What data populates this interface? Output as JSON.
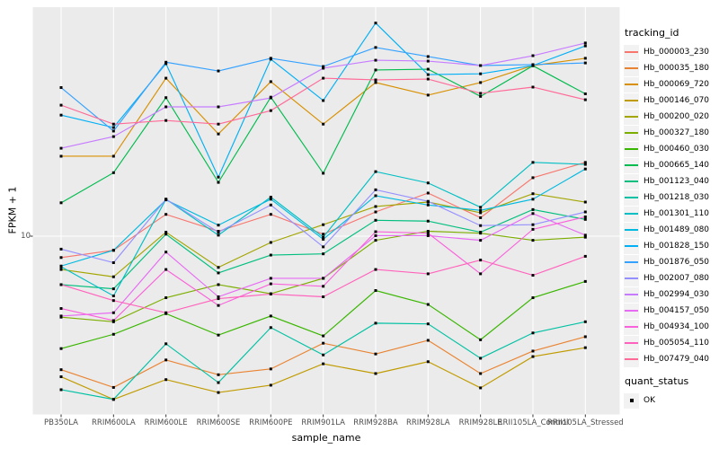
{
  "figure": {
    "panel_bg": "#EBEBEB",
    "grid_color": "#FFFFFF",
    "tick_color": "#333333",
    "axis_text_color": "#4D4D4D",
    "point_color": "#000000",
    "legend_key_bg": "#F2F2F2"
  },
  "axes": {
    "x_title": "sample_name",
    "y_title": "FPKM + 1",
    "y_tick_label": "10"
  },
  "legend": {
    "color_title": "tracking_id",
    "shape_title": "quant_status",
    "shape_item_label": "OK"
  },
  "chart_data": {
    "type": "line",
    "title": "",
    "xlabel": "sample_name",
    "ylabel": "FPKM + 1",
    "y_scale": "log10",
    "y_ticks": [
      10
    ],
    "ylim_approx": [
      1.8,
      90
    ],
    "grid": "major",
    "legend_position": "right",
    "point_marker": "black square (quant_status OK)",
    "categories": [
      "PB350LA",
      "RRIM600LA",
      "RRIM600LE",
      "RRIM600SE",
      "RRIM600PE",
      "RRIM901LA",
      "RRIM928BA",
      "RRIM928LA",
      "RRIM928LE",
      "RRII105LA_Control",
      "RRII105LA_Stressed"
    ],
    "series": [
      {
        "name": "Hb_000003_230",
        "color": "#F8766D",
        "values": [
          8.1,
          8.7,
          12.4,
          10.5,
          12.4,
          10.2,
          12.7,
          15.3,
          12.0,
          17.8,
          20.7
        ]
      },
      {
        "name": "Hb_000035_180",
        "color": "#EA8331",
        "values": [
          2.68,
          2.25,
          2.95,
          2.55,
          2.7,
          3.48,
          3.13,
          3.58,
          2.58,
          3.22,
          3.71
        ]
      },
      {
        "name": "Hb_000069_720",
        "color": "#D89000",
        "values": [
          22,
          22,
          47.5,
          27.4,
          45.9,
          30.2,
          45.5,
          40.2,
          45.5,
          53.8,
          57.8
        ]
      },
      {
        "name": "Hb_000146_070",
        "color": "#C09B00",
        "values": [
          2.5,
          2.0,
          2.43,
          2.14,
          2.3,
          2.84,
          2.58,
          2.9,
          2.24,
          3.05,
          3.33
        ]
      },
      {
        "name": "Hb_000200_020",
        "color": "#A3A500",
        "values": [
          7.2,
          6.7,
          10.4,
          7.35,
          9.4,
          11.2,
          13.4,
          14.0,
          12.6,
          15.2,
          14.0
        ]
      },
      {
        "name": "Hb_000327_180",
        "color": "#7CAE00",
        "values": [
          4.5,
          4.3,
          5.45,
          6.2,
          5.67,
          6.6,
          9.6,
          10.5,
          10.3,
          9.6,
          9.9
        ]
      },
      {
        "name": "Hb_000460_030",
        "color": "#39B600",
        "values": [
          3.3,
          3.8,
          4.66,
          3.77,
          4.55,
          3.74,
          5.85,
          5.1,
          3.6,
          5.45,
          6.4
        ]
      },
      {
        "name": "Hb_000665_140",
        "color": "#00BB4E",
        "values": [
          13.9,
          18.7,
          39.2,
          17.0,
          39.4,
          18.6,
          51.5,
          51.9,
          39.7,
          53.7,
          40.7
        ]
      },
      {
        "name": "Hb_001123_040",
        "color": "#00BF7D",
        "values": [
          6.2,
          5.95,
          10.2,
          6.96,
          8.3,
          8.4,
          11.7,
          11.6,
          10.4,
          13.0,
          11.8
        ]
      },
      {
        "name": "Hb_001218_030",
        "color": "#00C1A3",
        "values": [
          2.2,
          2.0,
          3.46,
          2.36,
          4.06,
          3.1,
          4.24,
          4.21,
          3.0,
          3.85,
          4.3
        ]
      },
      {
        "name": "Hb_001301_110",
        "color": "#00BFC4",
        "values": [
          7.4,
          5.55,
          14.4,
          10.1,
          14.7,
          9.9,
          18.9,
          16.9,
          13.3,
          20.7,
          20.3
        ]
      },
      {
        "name": "Hb_001489_080",
        "color": "#00BAE0",
        "values": [
          7.45,
          8.7,
          14.3,
          11.15,
          14.4,
          9.7,
          14.9,
          13.6,
          12.9,
          14.4,
          19.4
        ]
      },
      {
        "name": "Hb_001828_150",
        "color": "#00B0F6",
        "values": [
          33,
          29.2,
          54.8,
          17.9,
          57.3,
          38.1,
          81.8,
          49.2,
          49.6,
          53.8,
          65.3
        ]
      },
      {
        "name": "Hb_001876_050",
        "color": "#35A2FF",
        "values": [
          43.3,
          28.2,
          55.6,
          51.0,
          57.8,
          53.3,
          64.3,
          58.8,
          53.8,
          54.3,
          55.2
        ]
      },
      {
        "name": "Hb_002007_080",
        "color": "#9590FF",
        "values": [
          8.8,
          7.7,
          14.4,
          10.4,
          13.6,
          9.0,
          15.8,
          14.1,
          11.1,
          11.2,
          12.7
        ]
      },
      {
        "name": "Hb_002994_030",
        "color": "#C77CFF",
        "values": [
          23.8,
          26.7,
          35.8,
          35.8,
          39.1,
          52.4,
          56.7,
          56.2,
          53.8,
          59.3,
          67.2
        ]
      },
      {
        "name": "Hb_004157_050",
        "color": "#E76BF3",
        "values": [
          4.55,
          4.7,
          8.55,
          5.5,
          6.6,
          6.6,
          10.05,
          10.05,
          9.6,
          12.5,
          10.1
        ]
      },
      {
        "name": "Hb_004934_100",
        "color": "#FA62DB",
        "values": [
          4.9,
          4.35,
          7.2,
          5.05,
          6.25,
          6.1,
          10.45,
          10.3,
          6.9,
          10.7,
          12.1
        ]
      },
      {
        "name": "Hb_005054_110",
        "color": "#FF62BC",
        "values": [
          6.2,
          5.3,
          4.7,
          5.4,
          5.65,
          5.5,
          7.2,
          6.9,
          7.9,
          6.8,
          8.2
        ]
      },
      {
        "name": "Hb_007479_040",
        "color": "#FF6A98",
        "values": [
          36.4,
          30.2,
          31.3,
          30.2,
          34.5,
          47.5,
          46.7,
          47.1,
          40.9,
          43.5,
          38.4
        ]
      }
    ]
  }
}
